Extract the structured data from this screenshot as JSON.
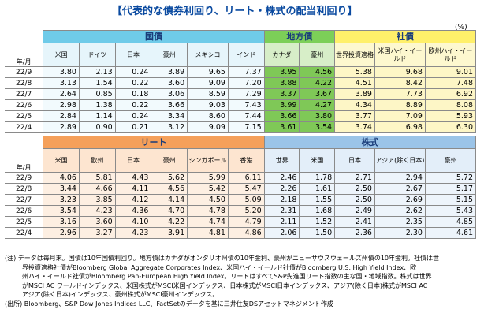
{
  "title": "【代表的な債券利回り、リート・株式の配当利回り】",
  "unit": "(%)",
  "top": {
    "year_label": "年/月",
    "groups": [
      "国債",
      "地方債",
      "社債"
    ],
    "cols": [
      "米国",
      "ドイツ",
      "日本",
      "豪州",
      "メキシコ",
      "インド",
      "カナダ",
      "豪州",
      "世界投資適格",
      "米国ハイ・イールド",
      "欧州ハイ・イールド"
    ],
    "rows": [
      {
        "date": "22/9",
        "values": [
          "3.80",
          "2.13",
          "0.24",
          "3.89",
          "9.65",
          "7.37",
          "3.95",
          "4.56",
          "5.38",
          "9.68",
          "9.01"
        ]
      },
      {
        "date": "22/8",
        "values": [
          "3.13",
          "1.54",
          "0.22",
          "3.60",
          "9.09",
          "7.20",
          "3.88",
          "4.22",
          "4.51",
          "8.42",
          "7.48"
        ]
      },
      {
        "date": "22/7",
        "values": [
          "2.64",
          "0.85",
          "0.18",
          "3.06",
          "8.59",
          "7.29",
          "3.37",
          "3.67",
          "3.89",
          "7.73",
          "6.92"
        ]
      },
      {
        "date": "22/6",
        "values": [
          "2.98",
          "1.38",
          "0.22",
          "3.66",
          "9.03",
          "7.43",
          "3.99",
          "4.27",
          "4.34",
          "8.89",
          "8.08"
        ]
      },
      {
        "date": "22/5",
        "values": [
          "2.84",
          "1.14",
          "0.24",
          "3.34",
          "8.60",
          "7.44",
          "3.66",
          "3.80",
          "3.77",
          "7.09",
          "5.93"
        ]
      },
      {
        "date": "22/4",
        "values": [
          "2.89",
          "0.90",
          "0.21",
          "3.12",
          "9.09",
          "7.15",
          "3.61",
          "3.54",
          "3.74",
          "6.98",
          "6.30"
        ]
      }
    ]
  },
  "bottom": {
    "year_label": "年/月",
    "groups": [
      "リート",
      "株式"
    ],
    "cols": [
      "米国",
      "欧州",
      "日本",
      "豪州",
      "シンガポール",
      "香港",
      "世界",
      "米国",
      "日本",
      "アジア(除く日本)",
      "豪州"
    ],
    "rows": [
      {
        "date": "22/9",
        "values": [
          "4.06",
          "5.81",
          "4.43",
          "5.62",
          "5.99",
          "6.11",
          "2.46",
          "1.78",
          "2.71",
          "2.94",
          "5.72"
        ]
      },
      {
        "date": "22/8",
        "values": [
          "3.44",
          "4.66",
          "4.11",
          "4.56",
          "5.42",
          "5.47",
          "2.26",
          "1.61",
          "2.50",
          "2.67",
          "5.17"
        ]
      },
      {
        "date": "22/7",
        "values": [
          "3.23",
          "3.85",
          "4.12",
          "4.14",
          "4.50",
          "5.09",
          "2.18",
          "1.55",
          "2.50",
          "2.69",
          "5.15"
        ]
      },
      {
        "date": "22/6",
        "values": [
          "3.54",
          "4.23",
          "4.36",
          "4.70",
          "4.78",
          "5.20",
          "2.31",
          "1.68",
          "2.49",
          "2.62",
          "5.43"
        ]
      },
      {
        "date": "22/5",
        "values": [
          "3.16",
          "3.60",
          "4.10",
          "4.22",
          "4.74",
          "4.79",
          "2.11",
          "1.52",
          "2.41",
          "2.35",
          "4.85"
        ]
      },
      {
        "date": "22/4",
        "values": [
          "2.96",
          "3.27",
          "4.23",
          "3.91",
          "4.81",
          "4.86",
          "2.06",
          "1.50",
          "2.36",
          "2.30",
          "4.61"
        ]
      }
    ]
  },
  "notes": {
    "n1": "(注) データは毎月末。国債は10年国債利回り。地方債はカナダがオンタリオ州債の10年金利、豪州がニューサウスウェールズ州債の10年金利。社債は世",
    "n2": "界投資適格社債がBloomberg Global Aggregate Corporates Index、米国ハイ・イールド社債がBloomberg U.S. High Yield Index、欧",
    "n3": "州ハイ・イールド社債がBloomberg Pan-European High Yield Index。リートはすべてS&P先進国リート指数の主な国・地域指数。株式は世界",
    "n4": "がMSCI AC ワールドインデックス、米国株式がMSCI米国インデックス、日本株式がMSCI日本インデックス、アジア(除く日本)株式がMSCI AC",
    "n5": "アジア(除く日本)インデックス、豪州株式がMSCI豪州インデックス。",
    "source": "(出所) Bloomberg、S&P Dow Jones Indices LLC、FactSetのデータを基に三井住友DSアセットマネジメント作成"
  }
}
